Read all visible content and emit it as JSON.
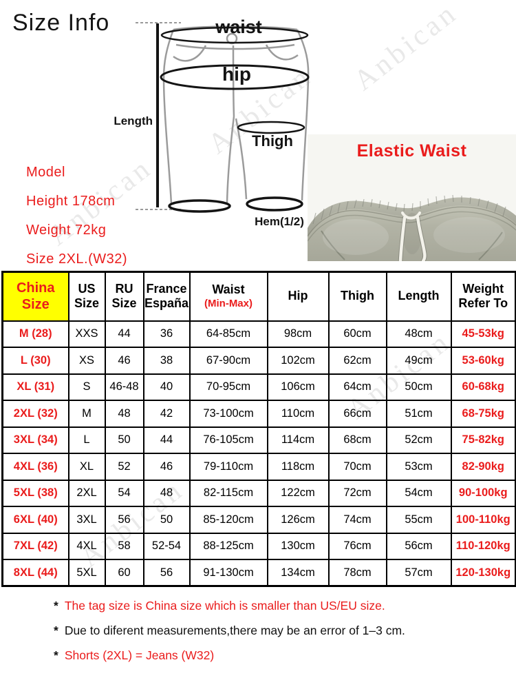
{
  "page": {
    "title": "Size Info"
  },
  "colors": {
    "accent_red": "#ea1c1c",
    "header_yellow": "#ffff00",
    "fabric_sage": "#b3b4a6"
  },
  "watermark_text": "Anbican",
  "diagram": {
    "labels": {
      "waist": "waist",
      "hip": "hip",
      "thigh": "Thigh",
      "length": "Length",
      "hem": "Hem(1/2)"
    }
  },
  "model_info": {
    "lines": [
      "Model",
      "Height 178cm",
      "Weight 72kg",
      "Size 2XL.(W32)"
    ]
  },
  "photo": {
    "caption": "Elastic Waist"
  },
  "table": {
    "header": {
      "china": [
        "China",
        "Size"
      ],
      "us": [
        "US",
        "Size"
      ],
      "ru": [
        "RU",
        "Size"
      ],
      "france": [
        "France",
        "España"
      ],
      "waist_main": "Waist",
      "waist_sub": "(Min-Max)",
      "hip": "Hip",
      "thigh": "Thigh",
      "length": "Length",
      "weight": [
        "Weight",
        "Refer To"
      ]
    }
  },
  "notes": [
    {
      "marker": "*",
      "text": "The tag size is China size which is smaller than US/EU size.",
      "color": "red"
    },
    {
      "marker": "*",
      "text": "Due to diferent measurements,there may be an error of 1–3 cm.",
      "color": "black"
    },
    {
      "marker": "*",
      "text": "Shorts (2XL) = Jeans (W32)",
      "color": "red"
    }
  ],
  "chart_data": {
    "type": "table",
    "title": "Size Info",
    "columns": [
      "China Size",
      "US Size",
      "RU Size",
      "France España",
      "Waist (Min-Max)",
      "Hip",
      "Thigh",
      "Length",
      "Weight Refer To"
    ],
    "rows": [
      [
        "M (28)",
        "XXS",
        "44",
        "36",
        "64-85cm",
        "98cm",
        "60cm",
        "48cm",
        "45-53kg"
      ],
      [
        "L (30)",
        "XS",
        "46",
        "38",
        "67-90cm",
        "102cm",
        "62cm",
        "49cm",
        "53-60kg"
      ],
      [
        "XL (31)",
        "S",
        "46-48",
        "40",
        "70-95cm",
        "106cm",
        "64cm",
        "50cm",
        "60-68kg"
      ],
      [
        "2XL (32)",
        "M",
        "48",
        "42",
        "73-100cm",
        "110cm",
        "66cm",
        "51cm",
        "68-75kg"
      ],
      [
        "3XL (34)",
        "L",
        "50",
        "44",
        "76-105cm",
        "114cm",
        "68cm",
        "52cm",
        "75-82kg"
      ],
      [
        "4XL (36)",
        "XL",
        "52",
        "46",
        "79-110cm",
        "118cm",
        "70cm",
        "53cm",
        "82-90kg"
      ],
      [
        "5XL (38)",
        "2XL",
        "54",
        "48",
        "82-115cm",
        "122cm",
        "72cm",
        "54cm",
        "90-100kg"
      ],
      [
        "6XL (40)",
        "3XL",
        "56",
        "50",
        "85-120cm",
        "126cm",
        "74cm",
        "55cm",
        "100-110kg"
      ],
      [
        "7XL (42)",
        "4XL",
        "58",
        "52-54",
        "88-125cm",
        "130cm",
        "76cm",
        "56cm",
        "110-120kg"
      ],
      [
        "8XL (44)",
        "5XL",
        "60",
        "56",
        "91-130cm",
        "134cm",
        "78cm",
        "57cm",
        "120-130kg"
      ]
    ]
  }
}
